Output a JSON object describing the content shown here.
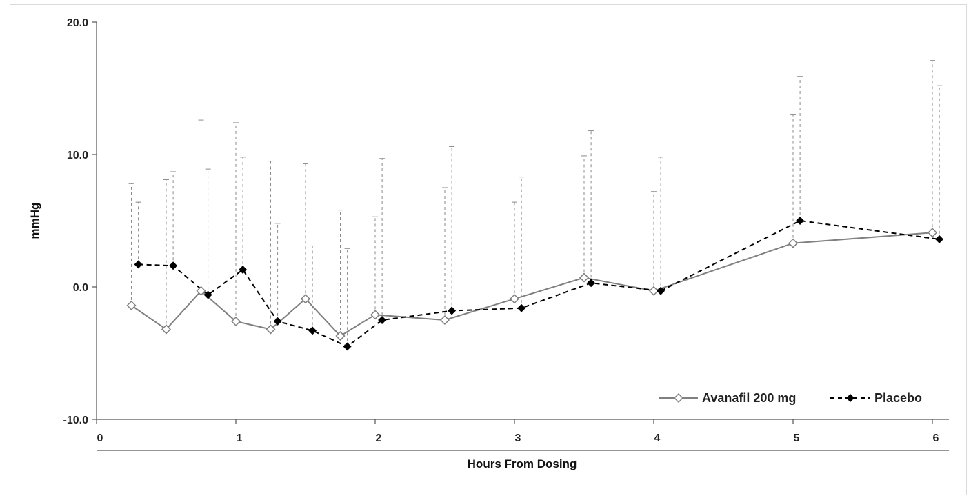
{
  "chart_data": {
    "type": "line",
    "title": "",
    "xlabel": "Hours From Dosing",
    "ylabel": "mmHg",
    "xlim": [
      0,
      6.2
    ],
    "ylim": [
      -10,
      20
    ],
    "x_ticks": [
      0,
      1,
      2,
      3,
      4,
      5,
      6
    ],
    "y_ticks": [
      "-10.0",
      "0.0",
      "10.0",
      "20.0"
    ],
    "grid": false,
    "legend_position": "bottom-right",
    "error_bars": "upper, dashed",
    "series": [
      {
        "name": "Avanafil 200 mg",
        "marker": "open-diamond",
        "line_style": "solid",
        "color": "#808080",
        "x": [
          0.25,
          0.5,
          0.75,
          1.0,
          1.25,
          1.5,
          1.75,
          2.0,
          2.5,
          3.0,
          3.5,
          4.0,
          5.0,
          6.0
        ],
        "y": [
          -1.4,
          -3.2,
          -0.3,
          -2.6,
          -3.2,
          -0.9,
          -3.7,
          -2.1,
          -2.5,
          -0.9,
          0.7,
          -0.3,
          3.3,
          4.1
        ],
        "upper": [
          7.8,
          8.1,
          12.6,
          12.4,
          9.5,
          9.3,
          5.8,
          5.3,
          7.5,
          6.4,
          9.9,
          7.2,
          13.0,
          17.1
        ]
      },
      {
        "name": "Placebo",
        "marker": "filled-diamond",
        "line_style": "dashed",
        "color": "#000000",
        "x": [
          0.3,
          0.55,
          0.8,
          1.05,
          1.3,
          1.55,
          1.8,
          2.05,
          2.55,
          3.05,
          3.55,
          4.05,
          5.05,
          6.05
        ],
        "y": [
          1.7,
          1.6,
          -0.6,
          1.3,
          -2.6,
          -3.3,
          -4.5,
          -2.5,
          -1.8,
          -1.6,
          0.3,
          -0.3,
          5.0,
          3.6
        ],
        "upper": [
          6.4,
          8.7,
          8.9,
          9.8,
          4.8,
          3.1,
          2.9,
          9.7,
          10.6,
          8.3,
          11.8,
          9.8,
          15.9,
          15.2
        ]
      }
    ]
  }
}
